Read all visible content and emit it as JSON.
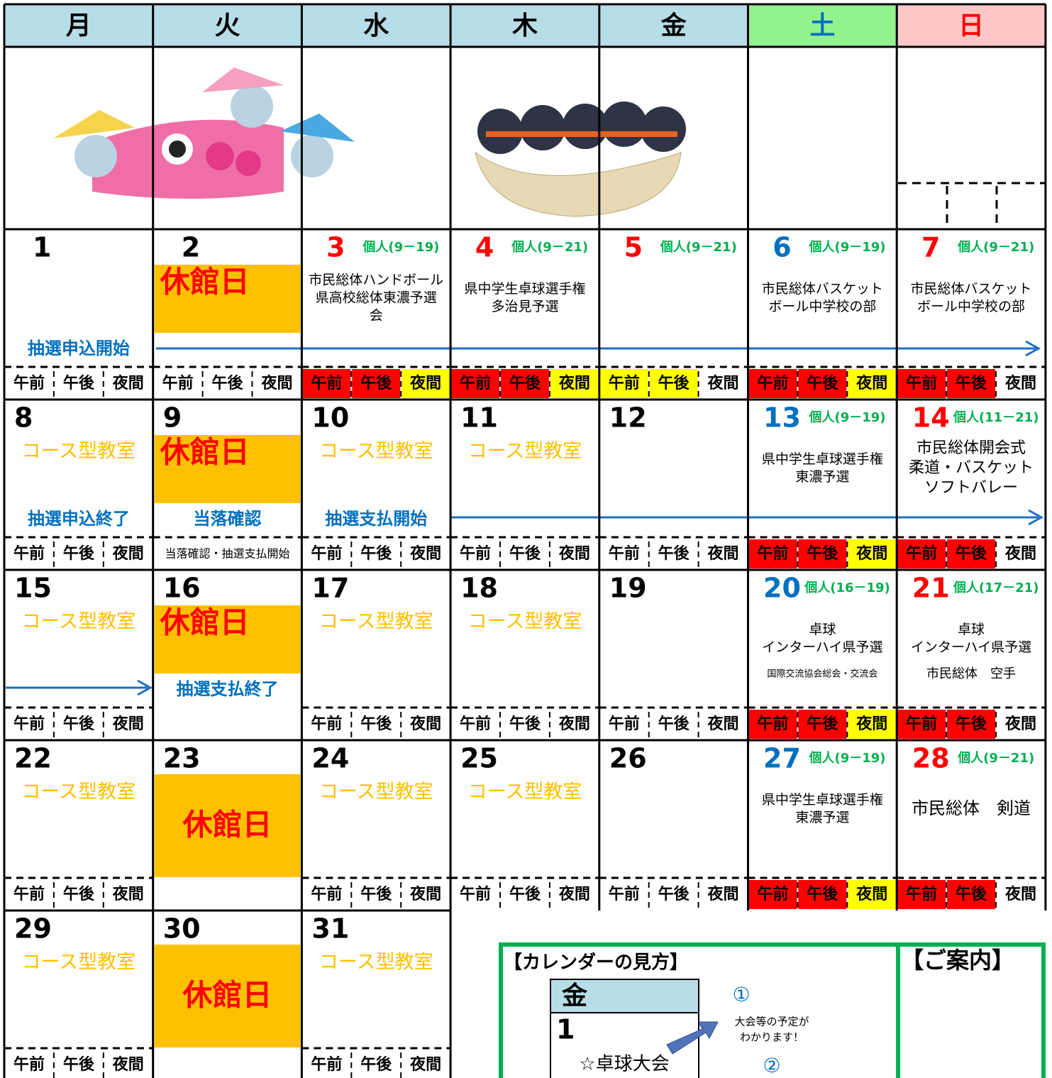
{
  "header": {
    "days": [
      "月",
      "火",
      "水",
      "木",
      "金",
      "土",
      "日"
    ],
    "colors": [
      "#b7dde8",
      "#b7dde8",
      "#b7dde8",
      "#b7dde8",
      "#b7dde8",
      "#92f28e",
      "#ffc8c8"
    ],
    "text_colors": [
      "#000000",
      "#000000",
      "#000000",
      "#000000",
      "#000000",
      "#0070c0",
      "#ff0000"
    ]
  },
  "weeks": [
    {
      "days": [
        {
          "date": "1",
          "event": "抽選申込開始",
          "slots": [
            "午前",
            "午後",
            "夜間"
          ],
          "slot_colors": [
            "#ffffff",
            "#ffffff",
            "#ffffff"
          ]
        },
        {
          "date": "2",
          "closed": "休館日",
          "slots": [
            "午前",
            "午後",
            "夜間"
          ],
          "slot_colors": [
            "#ffffff",
            "#ffffff",
            "#ffffff"
          ]
        },
        {
          "date": "3",
          "date_color": "#ff0000",
          "individual": "個人(9－19)",
          "lines": [
            "市民総体ハンドボール",
            "県高校総体東濃予選",
            "会"
          ],
          "slots": [
            "午前",
            "午後",
            "夜間"
          ],
          "slot_colors": [
            "#ff0000",
            "#ff0000",
            "#ffff00"
          ]
        },
        {
          "date": "4",
          "date_color": "#ff0000",
          "individual": "個人(9－21)",
          "lines": [
            "県中学生卓球選手権",
            "多治見予選"
          ],
          "slots": [
            "午前",
            "午後",
            "夜間"
          ],
          "slot_colors": [
            "#ff0000",
            "#ff0000",
            "#ffff00"
          ]
        },
        {
          "date": "5",
          "date_color": "#ff0000",
          "individual": "個人(9－21)",
          "slots": [
            "午前",
            "午後",
            "夜間"
          ],
          "slot_colors": [
            "#ffff00",
            "#ffff00",
            "#ffffff"
          ]
        },
        {
          "date": "6",
          "date_color": "#0070c0",
          "individual": "個人(9－19)",
          "lines": [
            "市民総体バスケット",
            "ボール中学校の部"
          ],
          "slots": [
            "午前",
            "午後",
            "夜間"
          ],
          "slot_colors": [
            "#ff0000",
            "#ff0000",
            "#ffff00"
          ]
        },
        {
          "date": "7",
          "date_color": "#ff0000",
          "individual": "個人(9－21)",
          "lines": [
            "市民総体バスケット",
            "ボール中学校の部"
          ],
          "slots": [
            "午前",
            "午後",
            "夜間"
          ],
          "slot_colors": [
            "#ff0000",
            "#ff0000",
            "#ffffff"
          ]
        }
      ]
    },
    {
      "days": [
        {
          "date": "8",
          "course": "コース型教室",
          "event": "抽選申込終了",
          "slots": [
            "午前",
            "午後",
            "夜間"
          ],
          "slot_colors": [
            "#ffffff",
            "#ffffff",
            "#ffffff"
          ]
        },
        {
          "date": "9",
          "closed": "休館日",
          "event": "当落確認",
          "slot_note": "当落確認・抽選支払開始"
        },
        {
          "date": "10",
          "course": "コース型教室",
          "event": "抽選支払開始",
          "slots": [
            "午前",
            "午後",
            "夜間"
          ],
          "slot_colors": [
            "#ffffff",
            "#ffffff",
            "#ffffff"
          ]
        },
        {
          "date": "11",
          "course": "コース型教室",
          "slots": [
            "午前",
            "午後",
            "夜間"
          ],
          "slot_colors": [
            "#ffffff",
            "#ffffff",
            "#ffffff"
          ]
        },
        {
          "date": "12",
          "slots": [
            "午前",
            "午後",
            "夜間"
          ],
          "slot_colors": [
            "#ffffff",
            "#ffffff",
            "#ffffff"
          ]
        },
        {
          "date": "13",
          "date_color": "#0070c0",
          "individual": "個人(9－19)",
          "lines": [
            "県中学生卓球選手権",
            "東濃予選"
          ],
          "slots": [
            "午前",
            "午後",
            "夜間"
          ],
          "slot_colors": [
            "#ff0000",
            "#ff0000",
            "#ffff00"
          ]
        },
        {
          "date": "14",
          "date_color": "#ff0000",
          "individual": "個人(11－21)",
          "lines": [
            "市民総体開会式",
            "柔道・バスケット",
            "ソフトバレー"
          ],
          "slots": [
            "午前",
            "午後",
            "夜間"
          ],
          "slot_colors": [
            "#ff0000",
            "#ff0000",
            "#ffffff"
          ]
        }
      ]
    },
    {
      "days": [
        {
          "date": "15",
          "course": "コース型教室",
          "slots": [
            "午前",
            "午後",
            "夜間"
          ],
          "slot_colors": [
            "#ffffff",
            "#ffffff",
            "#ffffff"
          ]
        },
        {
          "date": "16",
          "closed": "休館日",
          "event": "抽選支払終了"
        },
        {
          "date": "17",
          "course": "コース型教室",
          "slots": [
            "午前",
            "午後",
            "夜間"
          ],
          "slot_colors": [
            "#ffffff",
            "#ffffff",
            "#ffffff"
          ]
        },
        {
          "date": "18",
          "course": "コース型教室",
          "slots": [
            "午前",
            "午後",
            "夜間"
          ],
          "slot_colors": [
            "#ffffff",
            "#ffffff",
            "#ffffff"
          ]
        },
        {
          "date": "19",
          "slots": [
            "午前",
            "午後",
            "夜間"
          ],
          "slot_colors": [
            "#ffffff",
            "#ffffff",
            "#ffffff"
          ]
        },
        {
          "date": "20",
          "date_color": "#0070c0",
          "individual": "個人(16－19)",
          "lines": [
            "卓球",
            "インターハイ県予選"
          ],
          "note": "国際交流協会総会・交流会",
          "slots": [
            "午前",
            "午後",
            "夜間"
          ],
          "slot_colors": [
            "#ff0000",
            "#ff0000",
            "#ffff00"
          ]
        },
        {
          "date": "21",
          "date_color": "#ff0000",
          "individual": "個人(17－21)",
          "lines": [
            "卓球",
            "インターハイ県予選"
          ],
          "note": "市民総体　空手",
          "slots": [
            "午前",
            "午後",
            "夜間"
          ],
          "slot_colors": [
            "#ff0000",
            "#ff0000",
            "#ffffff"
          ]
        }
      ]
    },
    {
      "days": [
        {
          "date": "22",
          "course": "コース型教室",
          "slots": [
            "午前",
            "午後",
            "夜間"
          ],
          "slot_colors": [
            "#ffffff",
            "#ffffff",
            "#ffffff"
          ]
        },
        {
          "date": "23",
          "closed": "休館日"
        },
        {
          "date": "24",
          "course": "コース型教室",
          "slots": [
            "午前",
            "午後",
            "夜間"
          ],
          "slot_colors": [
            "#ffffff",
            "#ffffff",
            "#ffffff"
          ]
        },
        {
          "date": "25",
          "course": "コース型教室",
          "slots": [
            "午前",
            "午後",
            "夜間"
          ],
          "slot_colors": [
            "#ffffff",
            "#ffffff",
            "#ffffff"
          ]
        },
        {
          "date": "26",
          "slots": [
            "午前",
            "午後",
            "夜間"
          ],
          "slot_colors": [
            "#ffffff",
            "#ffffff",
            "#ffffff"
          ]
        },
        {
          "date": "27",
          "date_color": "#0070c0",
          "individual": "個人(9－19)",
          "lines": [
            "県中学生卓球選手権",
            "東濃予選"
          ],
          "slots": [
            "午前",
            "午後",
            "夜間"
          ],
          "slot_colors": [
            "#ff0000",
            "#ff0000",
            "#ffff00"
          ]
        },
        {
          "date": "28",
          "date_color": "#ff0000",
          "individual": "個人(9－21)",
          "lines": [
            "市民総体　剣道"
          ],
          "slots": [
            "午前",
            "午後",
            "夜間"
          ],
          "slot_colors": [
            "#ff0000",
            "#ff0000",
            "#ffffff"
          ]
        }
      ]
    },
    {
      "days": [
        {
          "date": "29",
          "course": "コース型教室",
          "slots": [
            "午前",
            "午後",
            "夜間"
          ],
          "slot_colors": [
            "#ffffff",
            "#ffffff",
            "#ffffff"
          ]
        },
        {
          "date": "30",
          "closed": "休館日"
        },
        {
          "date": "31",
          "course": "コース型教室",
          "slots": [
            "午前",
            "午後",
            "夜間"
          ],
          "slot_colors": [
            "#ffffff",
            "#ffffff",
            "#ffffff"
          ]
        }
      ]
    }
  ],
  "legend": {
    "title": "【カレンダーの見方】",
    "sample_day": "金",
    "sample_date": "1",
    "sample_event": "☆卓球大会",
    "mark1": "①",
    "explain1": [
      "大会等の予定が",
      "わかります！"
    ],
    "mark2": "②",
    "info_title": "【ご案内】"
  }
}
